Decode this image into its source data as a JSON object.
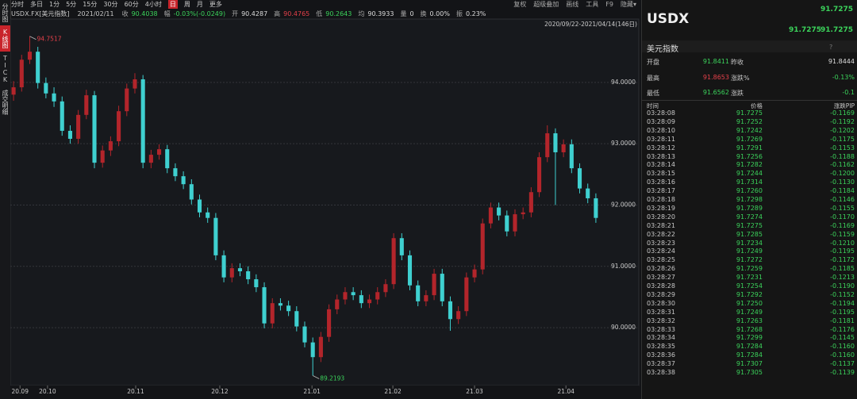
{
  "toolbar": {
    "periods": [
      "分时",
      "多日",
      "1分",
      "5分",
      "15分",
      "30分",
      "60分",
      "4小时",
      "日",
      "周",
      "月",
      "更多"
    ],
    "tools": [
      "复权",
      "超级叠加",
      "画线",
      "工具",
      "F9",
      "隐藏▾"
    ]
  },
  "left_tabs": [
    "分时图",
    "K线图",
    "TICK",
    "成交明细"
  ],
  "info": {
    "symbol": "USDX.FX[美元指数]",
    "date": "2021/02/11",
    "items": [
      {
        "label": "收",
        "value": "90.4038"
      },
      {
        "label": "幅",
        "value": "-0.03%(-0.0249)"
      },
      {
        "label": "开",
        "value": "90.4287"
      },
      {
        "label": "高",
        "value": "90.4765"
      },
      {
        "label": "低",
        "value": "90.2643"
      },
      {
        "label": "均",
        "value": "90.3933"
      },
      {
        "label": "量",
        "value": "0"
      },
      {
        "label": "换",
        "value": "0.00%"
      },
      {
        "label": "振",
        "value": "0.23%"
      }
    ]
  },
  "chart_data": {
    "type": "candlestick",
    "range_label": "2020/09/22-2021/04/14(146日)",
    "up_color": "#b3252b",
    "down_color": "#3fd0d0",
    "max_label": "94.7517",
    "min_label": "89.2193",
    "ohlc": [
      [
        93.8,
        94.02,
        93.7,
        93.92
      ],
      [
        93.92,
        94.45,
        93.85,
        94.37
      ],
      [
        94.37,
        94.7517,
        94.3,
        94.5
      ],
      [
        94.5,
        94.58,
        93.9,
        93.99
      ],
      [
        93.99,
        94.08,
        93.74,
        93.82
      ],
      [
        93.82,
        93.92,
        93.6,
        93.69
      ],
      [
        93.69,
        93.77,
        93.13,
        93.21
      ],
      [
        93.21,
        93.3,
        93.0,
        93.08
      ],
      [
        93.08,
        93.55,
        93.0,
        93.47
      ],
      [
        93.47,
        93.88,
        93.4,
        93.79
      ],
      [
        93.79,
        93.86,
        92.6,
        92.69
      ],
      [
        92.69,
        92.97,
        92.61,
        92.89
      ],
      [
        92.89,
        93.12,
        92.8,
        93.04
      ],
      [
        93.04,
        93.62,
        92.96,
        93.53
      ],
      [
        93.53,
        93.98,
        93.45,
        93.9
      ],
      [
        93.9,
        94.15,
        93.82,
        94.05
      ],
      [
        94.05,
        94.12,
        92.6,
        92.69
      ],
      [
        92.69,
        92.9,
        92.6,
        92.82
      ],
      [
        92.82,
        92.99,
        92.74,
        92.91
      ],
      [
        92.91,
        92.98,
        92.52,
        92.6
      ],
      [
        92.6,
        92.68,
        92.39,
        92.47
      ],
      [
        92.47,
        92.55,
        92.26,
        92.34
      ],
      [
        92.34,
        92.42,
        92.01,
        92.09
      ],
      [
        92.09,
        92.17,
        91.8,
        91.88
      ],
      [
        91.88,
        91.96,
        91.71,
        91.79
      ],
      [
        91.79,
        91.87,
        91.1,
        91.18
      ],
      [
        91.18,
        91.26,
        90.74,
        90.82
      ],
      [
        90.82,
        91.05,
        90.74,
        90.97
      ],
      [
        90.97,
        91.05,
        90.84,
        90.92
      ],
      [
        90.92,
        91.0,
        90.71,
        90.79
      ],
      [
        90.79,
        90.87,
        90.58,
        90.66
      ],
      [
        90.66,
        90.74,
        89.99,
        90.07
      ],
      [
        90.07,
        90.48,
        89.99,
        90.4
      ],
      [
        90.4,
        90.48,
        90.28,
        90.36
      ],
      [
        90.36,
        90.44,
        90.19,
        90.27
      ],
      [
        90.27,
        90.35,
        89.94,
        90.02
      ],
      [
        90.02,
        90.1,
        89.68,
        89.76
      ],
      [
        89.76,
        89.84,
        89.2193,
        89.52
      ],
      [
        89.52,
        89.93,
        89.44,
        89.85
      ],
      [
        89.85,
        90.38,
        89.77,
        90.3
      ],
      [
        90.3,
        90.54,
        90.22,
        90.46
      ],
      [
        90.46,
        90.66,
        90.38,
        90.58
      ],
      [
        90.58,
        90.66,
        90.45,
        90.53
      ],
      [
        90.53,
        90.61,
        90.32,
        90.4
      ],
      [
        90.4,
        90.54,
        90.32,
        90.46
      ],
      [
        90.46,
        90.66,
        90.38,
        90.58
      ],
      [
        90.58,
        90.79,
        90.5,
        90.71
      ],
      [
        90.71,
        91.54,
        90.63,
        91.46
      ],
      [
        91.46,
        91.54,
        91.1,
        91.18
      ],
      [
        91.18,
        91.26,
        90.61,
        90.69
      ],
      [
        90.69,
        90.77,
        90.35,
        90.43
      ],
      [
        90.43,
        90.61,
        90.35,
        90.53
      ],
      [
        90.53,
        90.96,
        90.45,
        90.88
      ],
      [
        90.88,
        90.96,
        90.35,
        90.43
      ],
      [
        90.43,
        90.51,
        89.95,
        90.14
      ],
      [
        90.14,
        90.35,
        90.06,
        90.27
      ],
      [
        90.27,
        90.9,
        90.19,
        90.82
      ],
      [
        90.82,
        91.03,
        90.74,
        90.95
      ],
      [
        90.95,
        91.78,
        90.87,
        91.7
      ],
      [
        91.7,
        92.04,
        91.62,
        91.96
      ],
      [
        91.96,
        92.04,
        91.75,
        91.83
      ],
      [
        91.83,
        91.91,
        91.49,
        91.57
      ],
      [
        91.57,
        91.93,
        91.49,
        91.85
      ],
      [
        91.85,
        91.96,
        91.77,
        91.88
      ],
      [
        91.88,
        92.29,
        91.8,
        92.21
      ],
      [
        92.21,
        92.86,
        92.13,
        92.78
      ],
      [
        92.78,
        93.3,
        92.7,
        93.17
      ],
      [
        93.17,
        93.25,
        92.0,
        92.86
      ],
      [
        92.86,
        93.07,
        92.78,
        92.99
      ],
      [
        92.99,
        93.07,
        92.52,
        92.6
      ],
      [
        92.6,
        92.68,
        92.19,
        92.27
      ],
      [
        92.27,
        92.35,
        92.03,
        92.11
      ],
      [
        92.11,
        92.19,
        91.71,
        91.79
      ]
    ],
    "xlim": [
      -0.5,
      72.5
    ],
    "xticks": [
      {
        "value": 0.8,
        "label": "20.09"
      },
      {
        "value": 4.2,
        "label": "20.10"
      },
      {
        "value": 15.1,
        "label": "20.11"
      },
      {
        "value": 25.5,
        "label": "20.12"
      },
      {
        "value": 36.9,
        "label": "21.01"
      },
      {
        "value": 46.9,
        "label": "21.02"
      },
      {
        "value": 57,
        "label": "21.03"
      },
      {
        "value": 68.3,
        "label": "21.04"
      }
    ],
    "ylim": [
      89.07,
      95.02
    ],
    "yticks": [
      {
        "value": 90,
        "label": "90.0000"
      },
      {
        "value": 91,
        "label": "91.0000"
      },
      {
        "value": 92,
        "label": "92.0000"
      },
      {
        "value": 93,
        "label": "93.0000"
      },
      {
        "value": 94,
        "label": "94.0000"
      }
    ],
    "grid": true
  },
  "quote": {
    "symbol": "USDX",
    "last": "91.7275",
    "bid": "91.7275",
    "ask": "91.7275",
    "name": "美元指数",
    "help": "?",
    "stats": [
      [
        {
          "label": "开盘",
          "value": "91.8411"
        },
        {
          "label": "昨收",
          "value": "91.8444"
        }
      ],
      [
        {
          "label": "最高",
          "value": "91.8653"
        },
        {
          "label": "涨跌%",
          "value": "-0.13%"
        }
      ],
      [
        {
          "label": "最低",
          "value": "91.6562"
        },
        {
          "label": "涨跌",
          "value": "-0.1"
        }
      ]
    ],
    "tick_headers": [
      "时间",
      "价格",
      "涨跌PIP"
    ],
    "ticks": [
      [
        "03:28:08",
        "91.7275",
        "-0.1169"
      ],
      [
        "03:28:09",
        "91.7252",
        "-0.1192"
      ],
      [
        "03:28:10",
        "91.7242",
        "-0.1202"
      ],
      [
        "03:28:11",
        "91.7269",
        "-0.1175"
      ],
      [
        "03:28:12",
        "91.7291",
        "-0.1153"
      ],
      [
        "03:28:13",
        "91.7256",
        "-0.1188"
      ],
      [
        "03:28:14",
        "91.7282",
        "-0.1162"
      ],
      [
        "03:28:15",
        "91.7244",
        "-0.1200"
      ],
      [
        "03:28:16",
        "91.7314",
        "-0.1130"
      ],
      [
        "03:28:17",
        "91.7260",
        "-0.1184"
      ],
      [
        "03:28:18",
        "91.7298",
        "-0.1146"
      ],
      [
        "03:28:19",
        "91.7289",
        "-0.1155"
      ],
      [
        "03:28:20",
        "91.7274",
        "-0.1170"
      ],
      [
        "03:28:21",
        "91.7275",
        "-0.1169"
      ],
      [
        "03:28:22",
        "91.7285",
        "-0.1159"
      ],
      [
        "03:28:23",
        "91.7234",
        "-0.1210"
      ],
      [
        "03:28:24",
        "91.7249",
        "-0.1195"
      ],
      [
        "03:28:25",
        "91.7272",
        "-0.1172"
      ],
      [
        "03:28:26",
        "91.7259",
        "-0.1185"
      ],
      [
        "03:28:27",
        "91.7231",
        "-0.1213"
      ],
      [
        "03:28:28",
        "91.7254",
        "-0.1190"
      ],
      [
        "03:28:29",
        "91.7292",
        "-0.1152"
      ],
      [
        "03:28:30",
        "91.7250",
        "-0.1194"
      ],
      [
        "03:28:31",
        "91.7249",
        "-0.1195"
      ],
      [
        "03:28:32",
        "91.7263",
        "-0.1181"
      ],
      [
        "03:28:33",
        "91.7268",
        "-0.1176"
      ],
      [
        "03:28:34",
        "91.7299",
        "-0.1145"
      ],
      [
        "03:28:35",
        "91.7284",
        "-0.1160"
      ],
      [
        "03:28:36",
        "91.7284",
        "-0.1160"
      ],
      [
        "03:28:37",
        "91.7307",
        "-0.1137"
      ],
      [
        "03:28:38",
        "91.7305",
        "-0.1139"
      ]
    ]
  }
}
